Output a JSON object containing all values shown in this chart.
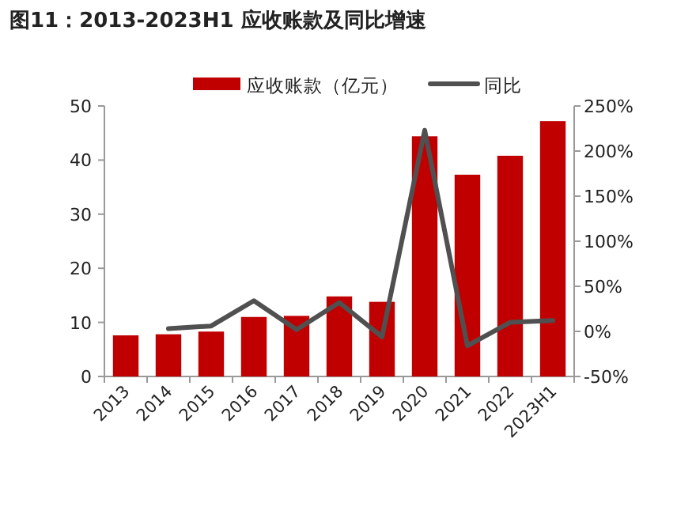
{
  "chart_data": {
    "type": "bar",
    "title": "图11：2013-2023H1 应收账款及同比增速",
    "categories": [
      "2013",
      "2014",
      "2015",
      "2016",
      "2017",
      "2018",
      "2019",
      "2020",
      "2021",
      "2022",
      "2023H1"
    ],
    "series": [
      {
        "name": "应收账款（亿元）",
        "color": "#c00000",
        "values": [
          7.6,
          7.8,
          8.3,
          11.0,
          11.2,
          14.8,
          13.8,
          44.4,
          37.3,
          40.8,
          47.2
        ]
      },
      {
        "name": "同比",
        "type": "line",
        "axis": "y2",
        "color": "#505050",
        "values": [
          null,
          3,
          6,
          34,
          2,
          32,
          -6,
          223,
          -16,
          10,
          12
        ]
      }
    ],
    "ylim": [
      0,
      50
    ],
    "yticks": [
      0,
      10,
      20,
      30,
      40,
      50
    ],
    "y2lim": [
      -50,
      250
    ],
    "y2ticks": [
      {
        "value": -50,
        "label": "-50%"
      },
      {
        "value": 0,
        "label": "0%"
      },
      {
        "value": 50,
        "label": "50%"
      },
      {
        "value": 100,
        "label": "100%"
      },
      {
        "value": 150,
        "label": "150%"
      },
      {
        "value": 200,
        "label": "200%"
      },
      {
        "value": 250,
        "label": "250%"
      }
    ],
    "legend": "top",
    "grid": false,
    "marker": "none",
    "line_style": "solid"
  }
}
